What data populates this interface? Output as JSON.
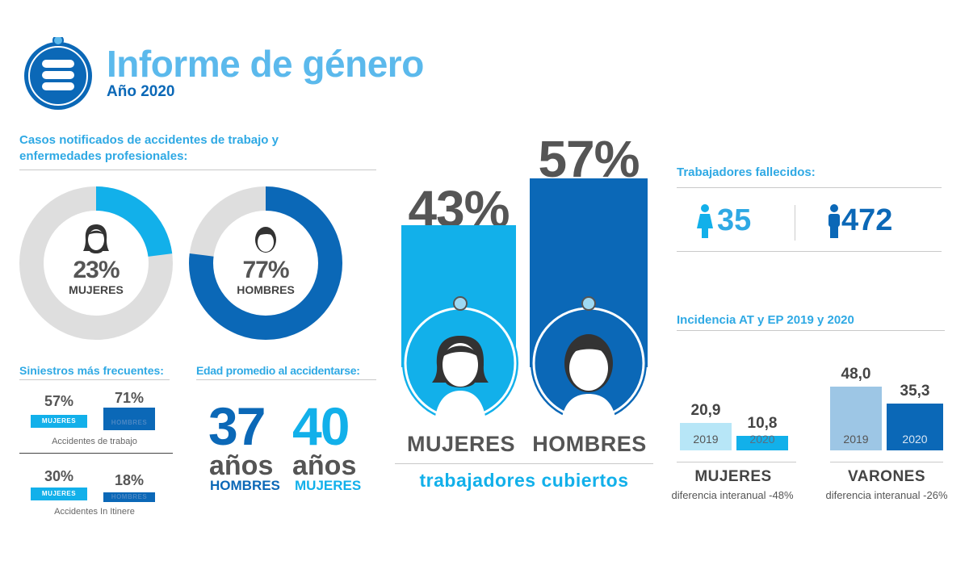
{
  "header": {
    "title": "Informe de género",
    "subtitle": "Año 2020",
    "icon": "database-icon"
  },
  "colors": {
    "light_blue": "#12b0ea",
    "dark_blue": "#0b68b7",
    "title_blue": "#5bb9ec",
    "gray_ring": "#dedede",
    "pale_blue": "#b7e6f7",
    "steel_blue": "#9dc6e5"
  },
  "casos": {
    "title_line1": "Casos notificados de accidentes de trabajo y",
    "title_line2": "enfermedades profesionales:",
    "mujeres": {
      "percent": "23%",
      "value": 23,
      "label": "MUJERES"
    },
    "hombres": {
      "percent": "77%",
      "value": 77,
      "label": "HOMBRES"
    }
  },
  "siniestros": {
    "title": "Siniestros más frecuentes:",
    "trabajo": {
      "mujeres": {
        "percent": "57%",
        "value": 57,
        "label": "MUJERES"
      },
      "hombres": {
        "percent": "71%",
        "value": 71,
        "label": "HOMBRES"
      },
      "caption": "Accidentes de trabajo"
    },
    "itinere": {
      "mujeres": {
        "percent": "30%",
        "value": 30,
        "label": "MUJERES"
      },
      "hombres": {
        "percent": "18%",
        "value": 18,
        "label": "HOMBRES"
      },
      "caption": "Accidentes In Itinere"
    }
  },
  "edad": {
    "title": "Edad promedio al accidentarse:",
    "hombres": {
      "value": "37",
      "unit": "años",
      "label": "HOMBRES"
    },
    "mujeres": {
      "value": "40",
      "unit": "años",
      "label": "MUJERES"
    }
  },
  "cubiertos": {
    "mujeres": {
      "percent": "43%",
      "value": 43,
      "label": "MUJERES"
    },
    "hombres": {
      "percent": "57%",
      "value": 57,
      "label": "HOMBRES"
    },
    "caption": "trabajadores cubiertos"
  },
  "fallecidos": {
    "title": "Trabajadores fallecidos:",
    "mujeres": {
      "count": "35",
      "icon": "woman-icon"
    },
    "hombres": {
      "count": "472",
      "icon": "man-icon"
    }
  },
  "incidencia": {
    "title": "Incidencia AT y EP 2019 y 2020",
    "mujeres": {
      "label": "MUJERES",
      "diff": "diferencia interanual -48%",
      "y2019": {
        "year": "2019",
        "value": "20,9",
        "num": 20.9
      },
      "y2020": {
        "year": "2020",
        "value": "10,8",
        "num": 10.8
      }
    },
    "varones": {
      "label": "VARONES",
      "diff": "diferencia interanual -26%",
      "y2019": {
        "year": "2019",
        "value": "48,0",
        "num": 48.0
      },
      "y2020": {
        "year": "2020",
        "value": "35,3",
        "num": 35.3
      }
    }
  }
}
